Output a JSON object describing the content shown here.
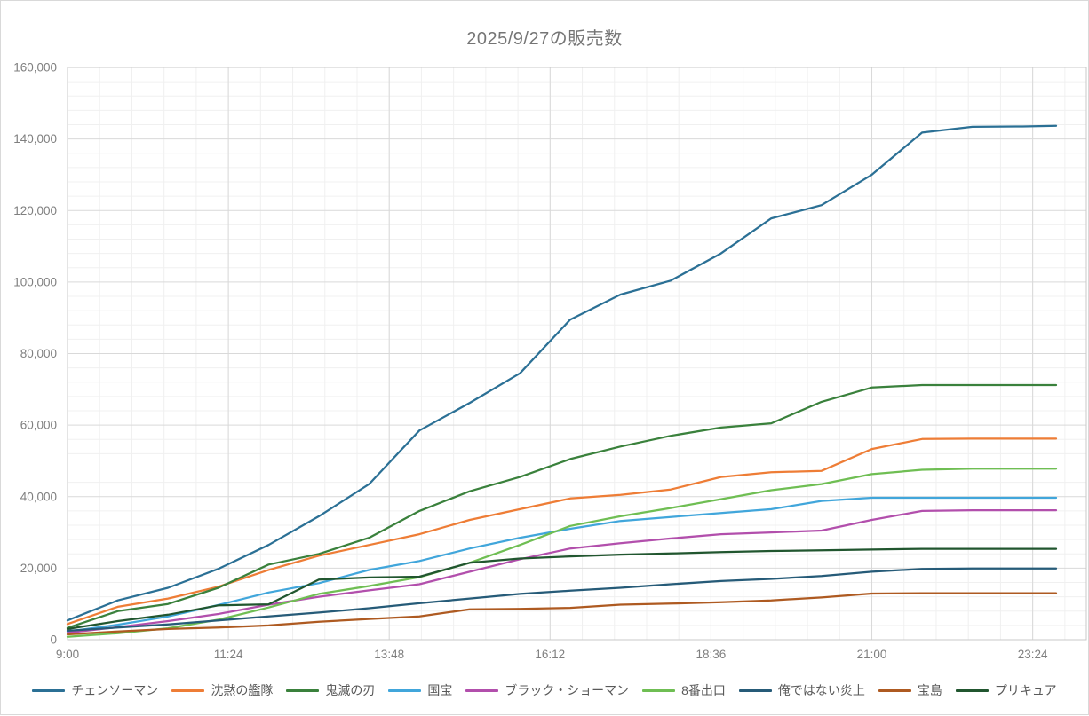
{
  "chart_data": {
    "type": "line",
    "title": "2025/9/27の販売数",
    "x_axis": {
      "tick_labels": [
        "9:00",
        "11:24",
        "13:48",
        "16:12",
        "18:36",
        "21:00",
        "23:24"
      ],
      "data_start": "9:00",
      "data_end": "23:45"
    },
    "y_axis": {
      "min": 0,
      "max": 160000,
      "major_step": 20000,
      "minor_step": 4000,
      "tick_labels": [
        "0",
        "20,000",
        "40,000",
        "60,000",
        "80,000",
        "100,000",
        "120,000",
        "140,000",
        "160,000"
      ]
    },
    "grid": true,
    "legend_position": "bottom",
    "x": [
      "9:00",
      "9:45",
      "10:30",
      "11:15",
      "12:00",
      "12:45",
      "13:30",
      "14:15",
      "15:00",
      "15:45",
      "16:30",
      "17:15",
      "18:00",
      "18:45",
      "19:30",
      "20:15",
      "21:00",
      "21:45",
      "22:30",
      "23:15",
      "23:45"
    ],
    "series": [
      {
        "name": "チェンソーマン",
        "color": "#2B7095",
        "values": [
          5400,
          11000,
          14500,
          19800,
          26500,
          34500,
          43500,
          58500,
          66200,
          74500,
          89500,
          96500,
          100400,
          108000,
          117800,
          121500,
          130000,
          141800,
          143400,
          143500,
          143700
        ]
      },
      {
        "name": "沈黙の艦隊",
        "color": "#EE7D36",
        "values": [
          4400,
          9200,
          11500,
          14800,
          19500,
          23500,
          26500,
          29500,
          33500,
          36500,
          39500,
          40500,
          42000,
          45500,
          46800,
          47200,
          53300,
          56100,
          56200,
          56200,
          56200
        ]
      },
      {
        "name": "鬼滅の刃",
        "color": "#3A813C",
        "values": [
          3300,
          8000,
          10000,
          14500,
          21000,
          24000,
          28500,
          36000,
          41500,
          45500,
          50500,
          54000,
          57000,
          59300,
          60500,
          66500,
          70500,
          71200,
          71200,
          71200,
          71200
        ]
      },
      {
        "name": "国宝",
        "color": "#41A6DB",
        "values": [
          2300,
          4200,
          6500,
          9700,
          13200,
          15800,
          19500,
          22000,
          25500,
          28500,
          31000,
          33200,
          34300,
          35400,
          36500,
          38800,
          39700,
          39700,
          39700,
          39700,
          39700
        ]
      },
      {
        "name": "ブラック・ショーマン",
        "color": "#B24FAC",
        "values": [
          1900,
          3500,
          5200,
          7200,
          9800,
          12000,
          13800,
          15500,
          19000,
          22500,
          25500,
          27000,
          28300,
          29500,
          30000,
          30500,
          33500,
          36000,
          36200,
          36200,
          36200
        ]
      },
      {
        "name": "8番出口",
        "color": "#6FBE53",
        "values": [
          800,
          1800,
          3200,
          5600,
          9000,
          12800,
          15000,
          17500,
          21500,
          26500,
          31800,
          34500,
          36800,
          39300,
          41800,
          43500,
          46300,
          47500,
          47800,
          47800,
          47800
        ]
      },
      {
        "name": "俺ではない炎上",
        "color": "#265B78",
        "values": [
          2500,
          3400,
          4300,
          5400,
          6500,
          7600,
          8800,
          10200,
          11500,
          12800,
          13700,
          14500,
          15500,
          16400,
          17000,
          17800,
          19000,
          19800,
          19900,
          19900,
          19900
        ]
      },
      {
        "name": "宝島",
        "color": "#AE5A21",
        "values": [
          1500,
          2300,
          3000,
          3400,
          4000,
          5000,
          5800,
          6500,
          8500,
          8600,
          8900,
          9800,
          10100,
          10500,
          11000,
          11800,
          12900,
          13000,
          13000,
          13000,
          13000
        ]
      },
      {
        "name": "プリキュア",
        "color": "#21562F",
        "values": [
          3000,
          5200,
          7000,
          9600,
          9900,
          16800,
          17400,
          17600,
          21500,
          22700,
          23300,
          23800,
          24100,
          24500,
          24800,
          25000,
          25200,
          25400,
          25400,
          25400,
          25400
        ]
      }
    ]
  }
}
